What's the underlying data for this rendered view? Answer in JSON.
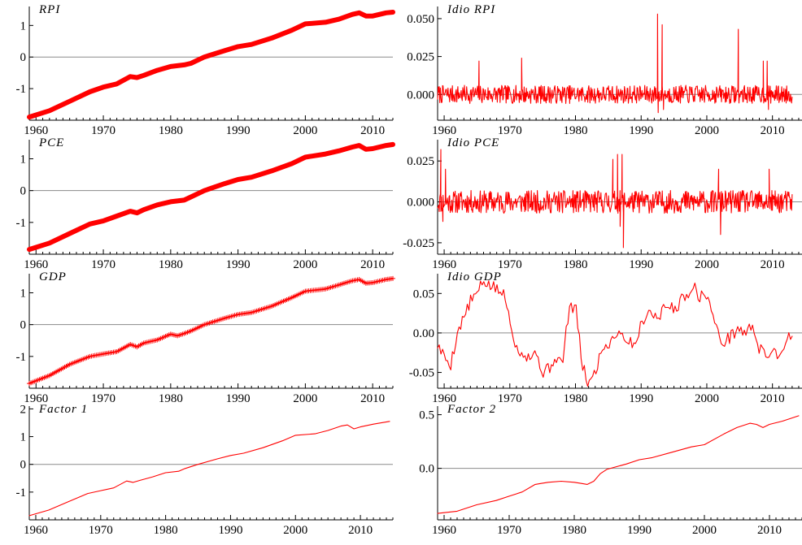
{
  "chart_data": [
    {
      "type": "line",
      "title": "RPI",
      "xlim": [
        1959,
        2013
      ],
      "ylim": [
        -2.0,
        1.6
      ],
      "xticks": [
        1960,
        1970,
        1980,
        1990,
        2000,
        2010
      ],
      "yticks": [
        {
          "v": 1,
          "label": "1"
        },
        {
          "v": 0,
          "label": "0"
        },
        {
          "v": -1,
          "label": "-1"
        }
      ],
      "zero_line": true,
      "color": "#ff0000",
      "marker": "dense",
      "series": [
        {
          "x": [
            1959,
            1962,
            1965,
            1968,
            1970,
            1972,
            1974,
            1975,
            1976,
            1978,
            1980,
            1982,
            1983,
            1985,
            1988,
            1990,
            1992,
            1995,
            1998,
            2000,
            2003,
            2005,
            2007,
            2008,
            2009,
            2010,
            2012,
            2013
          ],
          "y": [
            -1.9,
            -1.7,
            -1.4,
            -1.1,
            -0.95,
            -0.85,
            -0.62,
            -0.65,
            -0.58,
            -0.42,
            -0.3,
            -0.25,
            -0.2,
            0.0,
            0.2,
            0.33,
            0.4,
            0.6,
            0.85,
            1.05,
            1.1,
            1.2,
            1.35,
            1.4,
            1.3,
            1.3,
            1.4,
            1.42
          ]
        }
      ]
    },
    {
      "type": "line",
      "title": "Idio RPI",
      "xlim": [
        1959,
        2014.5
      ],
      "ylim": [
        -0.017,
        0.058
      ],
      "xticks": [
        1960,
        1970,
        1980,
        1990,
        2000,
        2010
      ],
      "yticks": [
        {
          "v": 0.05,
          "label": "0.050"
        },
        {
          "v": 0.025,
          "label": "0.025"
        },
        {
          "v": 0,
          "label": "0.000"
        }
      ],
      "zero_line": true,
      "color": "#ff0000",
      "marker": "none",
      "noise": {
        "x0": 1959,
        "x1": 2013,
        "n": 648,
        "amp": 0.006,
        "seed": 7
      },
      "series": [
        {
          "x": [
            1965.3,
            1971.8,
            1992.5,
            1992.6,
            1993.2,
            1993.4,
            2004.8,
            2008.6,
            2009.2,
            2009.4
          ],
          "y": [
            0.022,
            0.024,
            0.053,
            -0.012,
            0.046,
            -0.01,
            0.043,
            0.022,
            0.022,
            -0.01
          ]
        }
      ]
    },
    {
      "type": "line",
      "title": "PCE",
      "xlim": [
        1959,
        2013
      ],
      "ylim": [
        -2.0,
        1.6
      ],
      "xticks": [
        1960,
        1970,
        1980,
        1990,
        2000,
        2010
      ],
      "yticks": [
        {
          "v": 1,
          "label": "1"
        },
        {
          "v": 0,
          "label": "0"
        },
        {
          "v": -1,
          "label": "-1"
        }
      ],
      "zero_line": true,
      "color": "#ff0000",
      "marker": "dense",
      "series": [
        {
          "x": [
            1959,
            1962,
            1965,
            1968,
            1970,
            1972,
            1974,
            1975,
            1976,
            1978,
            1980,
            1982,
            1983,
            1985,
            1988,
            1990,
            1992,
            1995,
            1998,
            2000,
            2003,
            2005,
            2007,
            2008,
            2009,
            2010,
            2012,
            2013
          ],
          "y": [
            -1.85,
            -1.65,
            -1.35,
            -1.05,
            -0.95,
            -0.8,
            -0.65,
            -0.7,
            -0.6,
            -0.45,
            -0.35,
            -0.3,
            -0.2,
            0.0,
            0.22,
            0.35,
            0.42,
            0.62,
            0.85,
            1.05,
            1.15,
            1.25,
            1.37,
            1.42,
            1.3,
            1.32,
            1.42,
            1.45
          ]
        }
      ]
    },
    {
      "type": "line",
      "title": "Idio PCE",
      "xlim": [
        1959,
        2014.5
      ],
      "ylim": [
        -0.032,
        0.038
      ],
      "xticks": [
        1960,
        1970,
        1980,
        1990,
        2000,
        2010
      ],
      "yticks": [
        {
          "v": 0.025,
          "label": "0.025"
        },
        {
          "v": 0,
          "label": "0.000"
        },
        {
          "v": -0.025,
          "label": "-0.025"
        }
      ],
      "zero_line": true,
      "color": "#ff0000",
      "marker": "none",
      "noise": {
        "x0": 1959,
        "x1": 2013,
        "n": 648,
        "amp": 0.007,
        "seed": 11
      },
      "series": [
        {
          "x": [
            1959.5,
            1959.8,
            1960.2,
            1985.7,
            1986.4,
            1986.8,
            1987.1,
            1987.3,
            2001.8,
            2002.1,
            2009.5
          ],
          "y": [
            0.032,
            -0.012,
            0.02,
            0.026,
            0.029,
            -0.015,
            0.029,
            -0.028,
            0.02,
            -0.02,
            0.02
          ]
        }
      ]
    },
    {
      "type": "line",
      "title": "GDP",
      "xlim": [
        1959,
        2013
      ],
      "ylim": [
        -2.0,
        1.6
      ],
      "xticks": [
        1960,
        1970,
        1980,
        1990,
        2000,
        2010
      ],
      "yticks": [
        {
          "v": 1,
          "label": "1"
        },
        {
          "v": 0,
          "label": "0"
        },
        {
          "v": -1,
          "label": "-1"
        }
      ],
      "zero_line": true,
      "color": "#ff0000",
      "marker": "plus",
      "series": [
        {
          "x": [
            1959,
            1962,
            1965,
            1968,
            1970,
            1972,
            1974,
            1975,
            1976,
            1978,
            1980,
            1981,
            1982,
            1983,
            1985,
            1988,
            1990,
            1992,
            1995,
            1998,
            2000,
            2003,
            2005,
            2007,
            2008,
            2009,
            2010,
            2012,
            2013
          ],
          "y": [
            -1.85,
            -1.6,
            -1.25,
            -1.0,
            -0.92,
            -0.85,
            -0.62,
            -0.7,
            -0.58,
            -0.48,
            -0.3,
            -0.35,
            -0.28,
            -0.2,
            0.0,
            0.2,
            0.32,
            0.38,
            0.58,
            0.85,
            1.05,
            1.12,
            1.25,
            1.38,
            1.42,
            1.3,
            1.32,
            1.42,
            1.45
          ]
        }
      ]
    },
    {
      "type": "line",
      "title": "Idio GDP",
      "xlim": [
        1959,
        2014.5
      ],
      "ylim": [
        -0.07,
        0.075
      ],
      "xticks": [
        1960,
        1970,
        1980,
        1990,
        2000,
        2010
      ],
      "yticks": [
        {
          "v": 0.05,
          "label": "0.05"
        },
        {
          "v": 0,
          "label": "0.00"
        },
        {
          "v": -0.05,
          "label": "-0.05"
        }
      ],
      "zero_line": true,
      "color": "#ff0000",
      "marker": "none",
      "noise": {
        "x0": 1959,
        "x1": 2013,
        "n": 216,
        "amp": 0.008,
        "seed": 5
      },
      "series": [
        {
          "x": [
            1959,
            1960,
            1961,
            1962,
            1963,
            1964,
            1965,
            1966,
            1967,
            1968,
            1969,
            1970,
            1971,
            1972,
            1973,
            1974,
            1975,
            1976,
            1977,
            1978,
            1979,
            1980,
            1981,
            1982,
            1983,
            1984,
            1985,
            1986,
            1987,
            1988,
            1989,
            1990,
            1991,
            1992,
            1993,
            1994,
            1995,
            1996,
            1997,
            1998,
            1999,
            2000,
            2001,
            2002,
            2003,
            2004,
            2005,
            2006,
            2007,
            2008,
            2009,
            2010,
            2011,
            2012,
            2013,
            2014.5
          ],
          "y": [
            -0.015,
            -0.03,
            -0.04,
            0.0,
            0.02,
            0.04,
            0.05,
            0.065,
            0.06,
            0.055,
            0.05,
            0.02,
            -0.02,
            -0.025,
            -0.03,
            -0.025,
            -0.05,
            -0.045,
            -0.03,
            -0.04,
            0.03,
            0.035,
            -0.04,
            -0.065,
            -0.05,
            -0.02,
            -0.015,
            0.0,
            0.0,
            -0.01,
            -0.015,
            0.01,
            0.03,
            0.02,
            0.025,
            0.035,
            0.03,
            0.04,
            0.05,
            0.06,
            0.045,
            0.05,
            0.02,
            -0.01,
            -0.01,
            0.0,
            0.005,
            0.0,
            0.01,
            -0.02,
            -0.03,
            -0.02,
            -0.03,
            -0.01,
            0.0,
            0.0
          ]
        }
      ]
    },
    {
      "type": "line",
      "title": "Factor 1",
      "xlim": [
        1959,
        2015
      ],
      "ylim": [
        -2.0,
        2.1
      ],
      "xticks": [
        1960,
        1970,
        1980,
        1990,
        2000,
        2010
      ],
      "yticks": [
        {
          "v": 2,
          "label": "2"
        },
        {
          "v": 1,
          "label": "1"
        },
        {
          "v": 0,
          "label": "0"
        },
        {
          "v": -1,
          "label": "-1"
        }
      ],
      "zero_line": true,
      "color": "#ff0000",
      "marker": "none",
      "series": [
        {
          "x": [
            1959,
            1962,
            1965,
            1968,
            1970,
            1972,
            1974,
            1975,
            1976,
            1978,
            1980,
            1982,
            1983,
            1985,
            1988,
            1990,
            1992,
            1995,
            1998,
            2000,
            2003,
            2005,
            2007,
            2008,
            2009,
            2010,
            2012,
            2014.5
          ],
          "y": [
            -1.85,
            -1.65,
            -1.35,
            -1.05,
            -0.95,
            -0.85,
            -0.6,
            -0.65,
            -0.58,
            -0.45,
            -0.3,
            -0.25,
            -0.15,
            0.0,
            0.2,
            0.32,
            0.4,
            0.6,
            0.85,
            1.05,
            1.1,
            1.22,
            1.38,
            1.42,
            1.28,
            1.35,
            1.45,
            1.55
          ]
        }
      ]
    },
    {
      "type": "line",
      "title": "Factor 2",
      "xlim": [
        1959,
        2015
      ],
      "ylim": [
        -0.48,
        0.58
      ],
      "xticks": [
        1960,
        1970,
        1980,
        1990,
        2000,
        2010
      ],
      "yticks": [
        {
          "v": 0.5,
          "label": "0.5"
        },
        {
          "v": 0,
          "label": "0.0"
        }
      ],
      "zero_line": true,
      "color": "#ff0000",
      "marker": "none",
      "series": [
        {
          "x": [
            1959,
            1962,
            1965,
            1968,
            1970,
            1972,
            1974,
            1975,
            1976,
            1978,
            1980,
            1981,
            1982,
            1983,
            1984,
            1985,
            1988,
            1990,
            1992,
            1995,
            1998,
            2000,
            2003,
            2005,
            2007,
            2008,
            2009,
            2010,
            2012,
            2014.5
          ],
          "y": [
            -0.42,
            -0.4,
            -0.34,
            -0.3,
            -0.26,
            -0.22,
            -0.15,
            -0.14,
            -0.13,
            -0.12,
            -0.13,
            -0.14,
            -0.15,
            -0.12,
            -0.05,
            -0.01,
            0.04,
            0.08,
            0.1,
            0.15,
            0.2,
            0.22,
            0.32,
            0.38,
            0.42,
            0.41,
            0.38,
            0.41,
            0.44,
            0.49
          ]
        }
      ]
    }
  ]
}
